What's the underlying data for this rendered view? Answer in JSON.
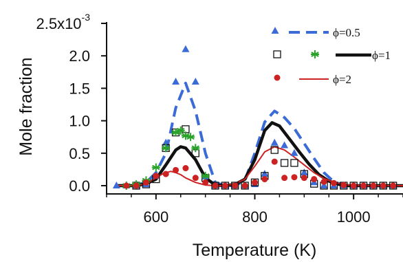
{
  "chart_data": {
    "type": "scatter",
    "xlabel": "Temperature (K)",
    "ylabel": "Mole fraction",
    "xlim": [
      500,
      1100
    ],
    "ylim": [
      0,
      0.0025
    ],
    "x_ticks": [
      {
        "value": 600,
        "label": "600"
      },
      {
        "value": 800,
        "label": "800"
      },
      {
        "value": 1000,
        "label": "1000"
      }
    ],
    "y_ticks": [
      {
        "value": 0.0,
        "label": "0.0"
      },
      {
        "value": 0.0005,
        "label": "0.5"
      },
      {
        "value": 0.001,
        "label": "1.0"
      },
      {
        "value": 0.0015,
        "label": "1.5"
      },
      {
        "value": 0.002,
        "label": "2.0"
      }
    ],
    "y_top_label": {
      "value": 0.0025,
      "base": "2.5x10",
      "exponent": "-3"
    },
    "colors": {
      "phi05": "#3b6bd6",
      "phi1": "#111111",
      "phi1_star": "#2aa32a",
      "phi2": "#cc2222",
      "axis": "#111111"
    },
    "legend": [
      {
        "label": "ϕ=0.5",
        "marker": "triangle",
        "line": "dashed",
        "color": "#3b6bd6"
      },
      {
        "label": "ϕ=1",
        "marker": "square-open+star",
        "line": "solid-thick",
        "color": "#111111"
      },
      {
        "label": "ϕ=2",
        "marker": "circle",
        "line": "solid-thin",
        "color": "#cc2222"
      }
    ],
    "series": [
      {
        "name": "ϕ=0.5",
        "kind": "points",
        "marker": "triangle",
        "color": "#3b6bd6",
        "x": [
          520,
          540,
          560,
          580,
          600,
          620,
          640,
          660,
          680,
          700,
          720,
          740,
          760,
          780,
          800,
          820,
          840,
          860,
          880,
          900,
          920,
          940,
          960,
          980,
          1000,
          1020,
          1040,
          1060,
          1080,
          1100
        ],
        "y": [
          0,
          0,
          0,
          2e-05,
          0.00015,
          0.00066,
          0.0016,
          0.0021,
          0.0016,
          0.00014,
          0,
          0,
          0,
          0,
          2e-05,
          0.00018,
          0.00066,
          0.00062,
          0.0005,
          0.0002,
          5e-05,
          0,
          0,
          0,
          0,
          0,
          0,
          0,
          0,
          0
        ]
      },
      {
        "name": "ϕ=0.5",
        "kind": "line",
        "style": "dashed",
        "color": "#3b6bd6",
        "x": [
          520,
          560,
          580,
          600,
          620,
          640,
          660,
          680,
          700,
          720,
          740,
          760,
          780,
          800,
          820,
          840,
          860,
          880,
          900,
          920,
          940,
          960,
          980,
          1000,
          1040,
          1100
        ],
        "y": [
          0,
          1e-05,
          5e-05,
          0.0002,
          0.0005,
          0.0012,
          0.00158,
          0.00115,
          0.0005,
          5e-05,
          0,
          0,
          8e-05,
          0.0005,
          0.00098,
          0.00115,
          0.00105,
          0.00088,
          0.00065,
          0.00042,
          0.0002,
          6e-05,
          1e-05,
          0,
          0,
          0
        ]
      },
      {
        "name": "ϕ=1",
        "kind": "points",
        "marker": "square-open",
        "color": "#111111",
        "x": [
          560,
          580,
          600,
          620,
          640,
          660,
          680,
          700,
          720,
          740,
          760,
          780,
          800,
          820,
          840,
          860,
          880,
          900,
          920,
          940,
          960,
          980,
          1000,
          1020,
          1040,
          1060,
          1080,
          1100
        ],
        "y": [
          0,
          2e-05,
          0.0001,
          0.00058,
          0.00082,
          0.00087,
          0.0005,
          0.00012,
          0,
          0,
          0,
          0,
          5e-05,
          0.00015,
          0.00055,
          0.00035,
          0.00035,
          0.00018,
          3e-05,
          0,
          0,
          0,
          0,
          0,
          0,
          0,
          0,
          0
        ]
      },
      {
        "name": "ϕ=1",
        "kind": "points",
        "marker": "star",
        "color": "#2aa32a",
        "x": [
          540,
          560,
          580,
          600,
          620,
          640,
          650,
          660,
          670,
          680,
          700
        ],
        "y": [
          0,
          2e-05,
          8e-05,
          0.00028,
          0.00058,
          0.00082,
          0.00085,
          0.00077,
          0.00075,
          0.00058,
          0.00015
        ]
      },
      {
        "name": "ϕ=1",
        "kind": "line",
        "style": "solid-thick",
        "color": "#111111",
        "x": [
          520,
          560,
          580,
          600,
          620,
          640,
          650,
          660,
          680,
          700,
          720,
          740,
          760,
          780,
          800,
          820,
          835,
          850,
          870,
          890,
          910,
          930,
          950,
          970,
          990,
          1020,
          1060,
          1100
        ],
        "y": [
          0,
          0,
          3e-05,
          0.0001,
          0.00032,
          0.00055,
          0.0006,
          0.00058,
          0.0004,
          0.00012,
          1e-05,
          0,
          2e-05,
          0.0001,
          0.0004,
          0.00085,
          0.00097,
          0.00092,
          0.00072,
          0.00052,
          0.00033,
          0.00017,
          7e-05,
          2e-05,
          0,
          0,
          0,
          0
        ]
      },
      {
        "name": "ϕ=2",
        "kind": "points",
        "marker": "circle",
        "color": "#cc2222",
        "x": [
          540,
          560,
          580,
          600,
          620,
          640,
          660,
          680,
          700,
          720,
          740,
          760,
          780,
          800,
          820,
          840,
          860,
          880,
          900,
          920,
          940,
          960,
          980,
          1000,
          1020,
          1040,
          1060,
          1080,
          1100
        ],
        "y": [
          0,
          0,
          5e-05,
          0.00015,
          0.00018,
          0.00024,
          0.00027,
          0.00012,
          5e-05,
          0,
          0,
          0,
          0,
          5e-05,
          0.0001,
          0.00037,
          0.00012,
          0.00013,
          0.00012,
          0.0001,
          6e-05,
          4e-05,
          1e-05,
          0,
          0,
          0,
          0,
          0,
          0
        ]
      },
      {
        "name": "ϕ=2",
        "kind": "line",
        "style": "solid-thin",
        "color": "#cc2222",
        "x": [
          520,
          560,
          580,
          600,
          615,
          630,
          640,
          650,
          660,
          680,
          700,
          720,
          740,
          760,
          780,
          800,
          820,
          840,
          860,
          880,
          900,
          920,
          940,
          960,
          990,
          1030,
          1100
        ],
        "y": [
          0,
          0,
          3e-05,
          0.00012,
          0.00019,
          0.00022,
          0.0002,
          0.00017,
          0.00012,
          5e-05,
          1e-05,
          0,
          0,
          3e-05,
          0.0001,
          0.0003,
          0.00052,
          0.0006,
          0.00055,
          0.00044,
          0.00032,
          0.0002,
          0.00011,
          5e-05,
          1e-05,
          0,
          0
        ]
      }
    ]
  }
}
